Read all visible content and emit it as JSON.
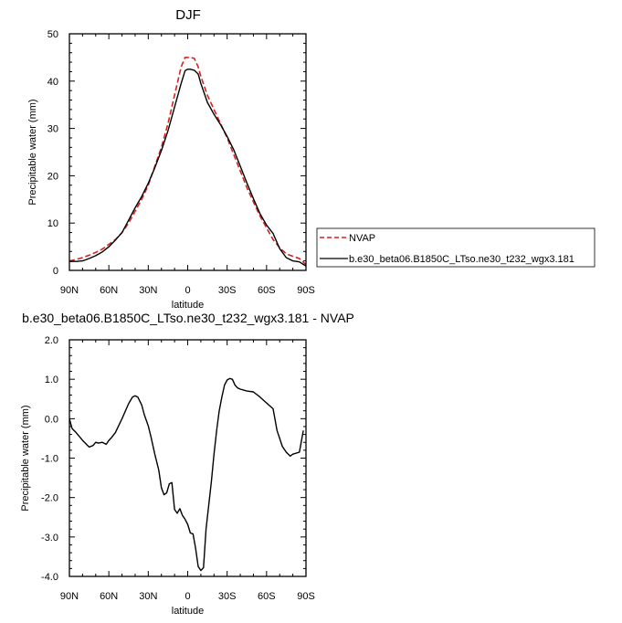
{
  "chart_data": [
    {
      "type": "line",
      "title": "DJF",
      "xlabel": "latitude",
      "ylabel": "Precipitable water (mm)",
      "xlim": [
        90,
        -90
      ],
      "ylim": [
        0,
        50
      ],
      "xticks": [
        90,
        60,
        30,
        0,
        -30,
        -60,
        -90
      ],
      "xtick_labels": [
        "90N",
        "60N",
        "30N",
        "0",
        "30S",
        "60S",
        "90S"
      ],
      "yticks": [
        0,
        10,
        20,
        30,
        40,
        50
      ],
      "ytick_labels": [
        "0",
        "10",
        "20",
        "30",
        "40",
        "50"
      ],
      "legend_placement": "right-outside",
      "series": [
        {
          "name": "NVAP",
          "color": "#d62020",
          "style": "dashed",
          "x": [
            90,
            85,
            80,
            75,
            70,
            65,
            60,
            55,
            50,
            45,
            40,
            35,
            30,
            25,
            20,
            15,
            10,
            5,
            2,
            0,
            -2,
            -5,
            -8,
            -10,
            -15,
            -20,
            -25,
            -30,
            -35,
            -40,
            -45,
            -50,
            -55,
            -60,
            -65,
            -70,
            -75,
            -80,
            -85,
            -90
          ],
          "y": [
            2,
            2.3,
            2.7,
            3.2,
            3.8,
            4.5,
            5.5,
            6.5,
            8,
            10,
            12.5,
            15,
            18,
            22,
            26,
            31,
            37,
            43,
            45,
            45,
            45,
            44.8,
            43,
            41,
            37,
            34,
            31,
            28,
            24.5,
            21,
            17.5,
            14.5,
            11.5,
            9,
            6.5,
            4.8,
            3.5,
            3,
            2.5,
            1.2
          ]
        },
        {
          "name": "b.e30_beta06.B1850C_LTso.ne30_t232_wgx3.181",
          "color": "#000000",
          "style": "solid",
          "x": [
            90,
            85,
            80,
            75,
            70,
            65,
            60,
            55,
            50,
            45,
            40,
            35,
            30,
            25,
            20,
            15,
            10,
            5,
            2,
            0,
            -2,
            -5,
            -8,
            -10,
            -15,
            -20,
            -25,
            -30,
            -35,
            -40,
            -45,
            -50,
            -55,
            -60,
            -65,
            -70,
            -75,
            -80,
            -85,
            -90
          ],
          "y": [
            1.9,
            1.9,
            2,
            2.5,
            3.1,
            3.9,
            5,
            6.4,
            8,
            10.6,
            13.2,
            15.6,
            18.4,
            21.7,
            25.3,
            29.5,
            34.5,
            39.5,
            42.2,
            42.5,
            42.5,
            42.3,
            41.5,
            39.5,
            35.5,
            33,
            30.8,
            28.3,
            25.5,
            22,
            18.5,
            15.2,
            12,
            9.6,
            7.8,
            4.6,
            2.7,
            2,
            1.8,
            0.9
          ]
        }
      ]
    },
    {
      "type": "line",
      "title": "b.e30_beta06.B1850C_LTso.ne30_t232_wgx3.181 - NVAP",
      "xlabel": "latitude",
      "ylabel": "Precipitable water (mm)",
      "xlim": [
        90,
        -90
      ],
      "ylim": [
        -4.0,
        2.0
      ],
      "xticks": [
        90,
        60,
        30,
        0,
        -30,
        -60,
        -90
      ],
      "xtick_labels": [
        "90N",
        "60N",
        "30N",
        "0",
        "30S",
        "60S",
        "90S"
      ],
      "yticks": [
        2.0,
        1.0,
        0.0,
        -1.0,
        -2.0,
        -3.0,
        -4.0
      ],
      "ytick_labels": [
        "2.0",
        "1.0",
        "0.0",
        "-1.0",
        "-2.0",
        "-3.0",
        "-4.0"
      ],
      "series": [
        {
          "color": "#000000",
          "style": "solid",
          "x": [
            90,
            88,
            85,
            80,
            75,
            72,
            70,
            68,
            65,
            62,
            60,
            58,
            55,
            50,
            45,
            42,
            40,
            38,
            35,
            33,
            30,
            28,
            25,
            22,
            20,
            18,
            16,
            14,
            12,
            10,
            8,
            6,
            4,
            2,
            0,
            -2,
            -4,
            -6,
            -8,
            -10,
            -12,
            -14,
            -16,
            -18,
            -20,
            -22,
            -24,
            -26,
            -28,
            -30,
            -32,
            -34,
            -36,
            -38,
            -40,
            -45,
            -50,
            -55,
            -60,
            -65,
            -68,
            -70,
            -72,
            -75,
            -78,
            -80,
            -85,
            -88
          ],
          "y": [
            0,
            -0.25,
            -0.35,
            -0.55,
            -0.72,
            -0.68,
            -0.6,
            -0.62,
            -0.6,
            -0.65,
            -0.55,
            -0.48,
            -0.35,
            0,
            0.38,
            0.55,
            0.58,
            0.55,
            0.35,
            0.1,
            -0.18,
            -0.45,
            -0.9,
            -1.3,
            -1.75,
            -1.93,
            -1.88,
            -1.65,
            -1.62,
            -2.3,
            -2.4,
            -2.28,
            -2.45,
            -2.55,
            -2.68,
            -2.9,
            -2.92,
            -3.28,
            -3.75,
            -3.85,
            -3.78,
            -2.8,
            -2.2,
            -1.6,
            -0.9,
            -0.3,
            0.2,
            0.55,
            0.85,
            0.98,
            1.02,
            1.0,
            0.85,
            0.78,
            0.75,
            0.7,
            0.68,
            0.55,
            0.4,
            0.25,
            -0.3,
            -0.5,
            -0.7,
            -0.85,
            -0.95,
            -0.9,
            -0.85,
            -0.3
          ]
        }
      ]
    }
  ]
}
